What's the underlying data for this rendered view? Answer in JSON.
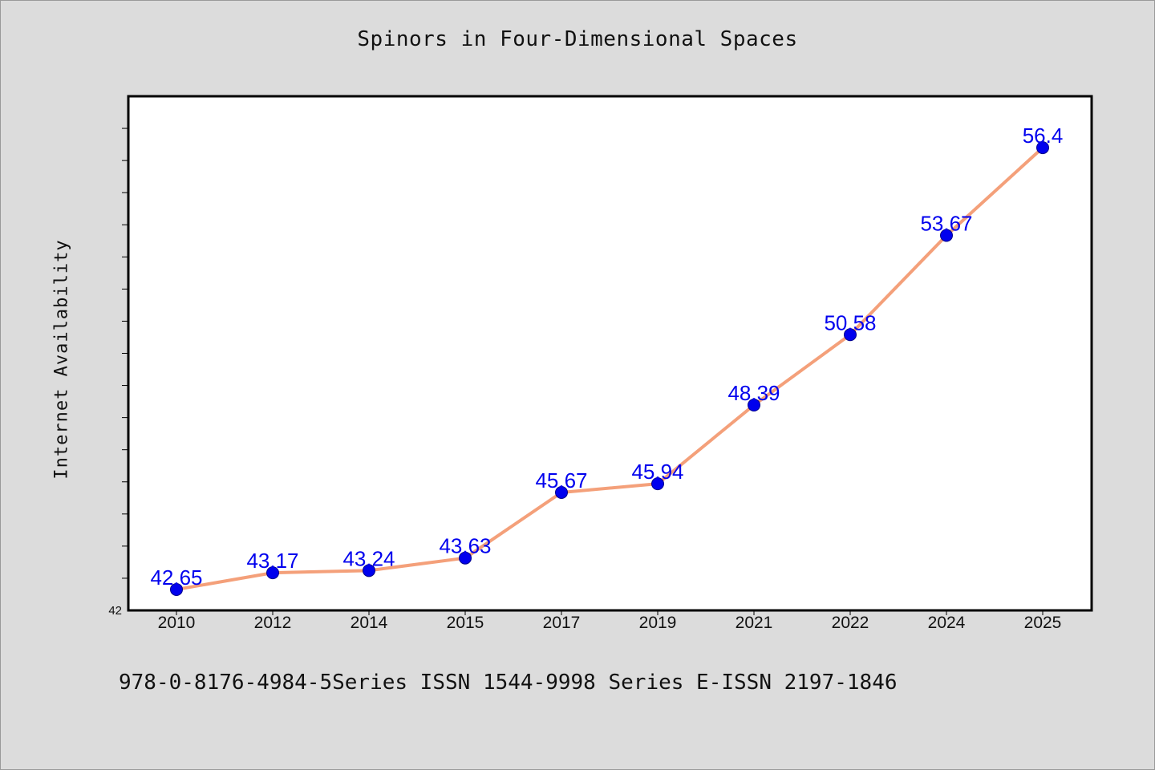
{
  "chart_data": {
    "type": "line",
    "title": "Spinors in Four-Dimensional Spaces",
    "xlabel": "",
    "ylabel": "Internet Availability",
    "categories": [
      "2010",
      "2012",
      "2014",
      "2015",
      "2017",
      "2019",
      "2021",
      "2022",
      "2024",
      "2025"
    ],
    "series": [
      {
        "values": [
          42.65,
          43.17,
          43.24,
          43.63,
          45.67,
          45.94,
          48.39,
          50.58,
          53.67,
          56.4
        ],
        "data_labels": [
          "42.65",
          "43.17",
          "43.24",
          "43.63",
          "45.67",
          "45.94",
          "48.39",
          "50.58",
          "53.67",
          "56.4"
        ]
      }
    ],
    "ylim": [
      42,
      58
    ],
    "y_tick_labels": [
      "42"
    ],
    "grid": false,
    "legend": "none",
    "colors": {
      "line": "#f4a07a",
      "marker": "#0000ee",
      "label": "#0000ee",
      "background": "#dcdcdc",
      "plot_area": "#ffffff"
    }
  },
  "footer": {
    "text": "978-0-8176-4984-5Series ISSN 1544-9998 Series E-ISSN 2197-1846"
  }
}
